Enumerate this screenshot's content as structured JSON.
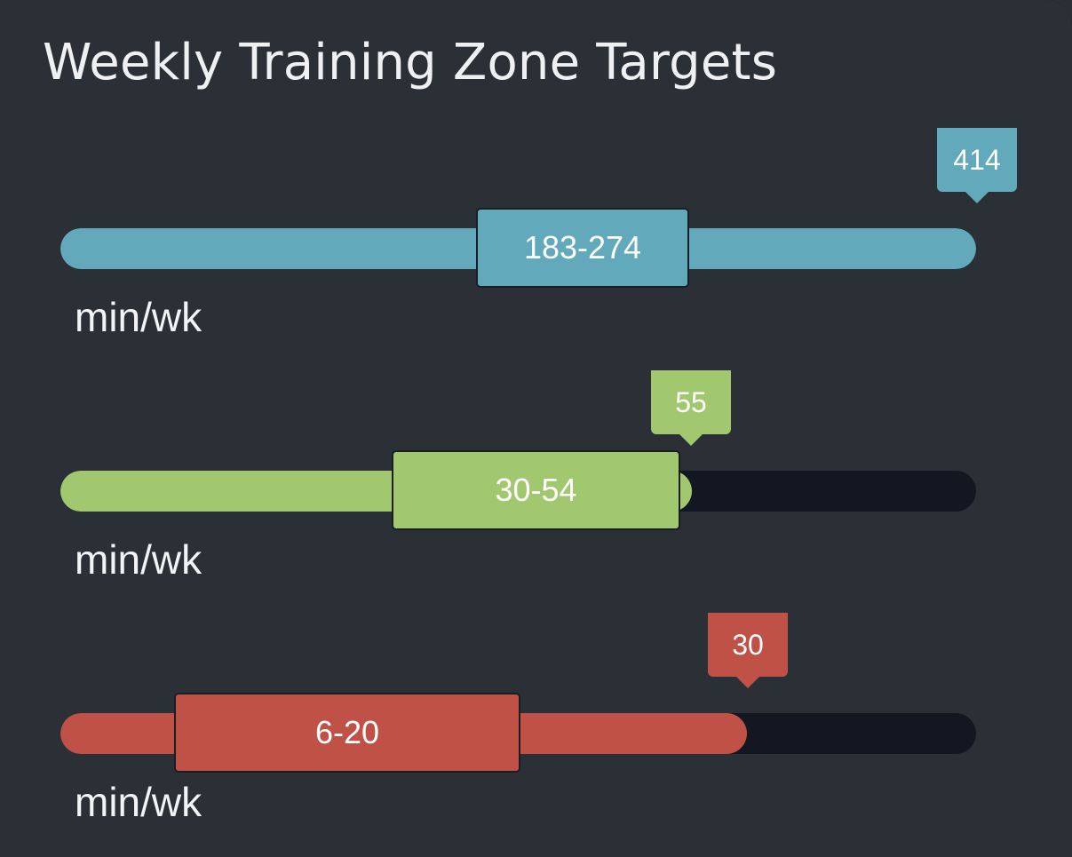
{
  "title": "Weekly Training Zone Targets",
  "zones": [
    {
      "range_label": "183-274",
      "marker_label": "414",
      "unit": "min/wk",
      "color": "#62a9bb",
      "value": 414,
      "range_low": 183,
      "range_high": 274,
      "fill_fraction": 1.0
    },
    {
      "range_label": "30-54",
      "marker_label": "55",
      "unit": "min/wk",
      "color": "#a1c86f",
      "value": 55,
      "range_low": 30,
      "range_high": 54,
      "fill_fraction": 0.69
    },
    {
      "range_label": "6-20",
      "marker_label": "30",
      "unit": "min/wk",
      "color": "#bf5146",
      "value": 30,
      "range_low": 6,
      "range_high": 20,
      "fill_fraction": 0.75
    }
  ]
}
